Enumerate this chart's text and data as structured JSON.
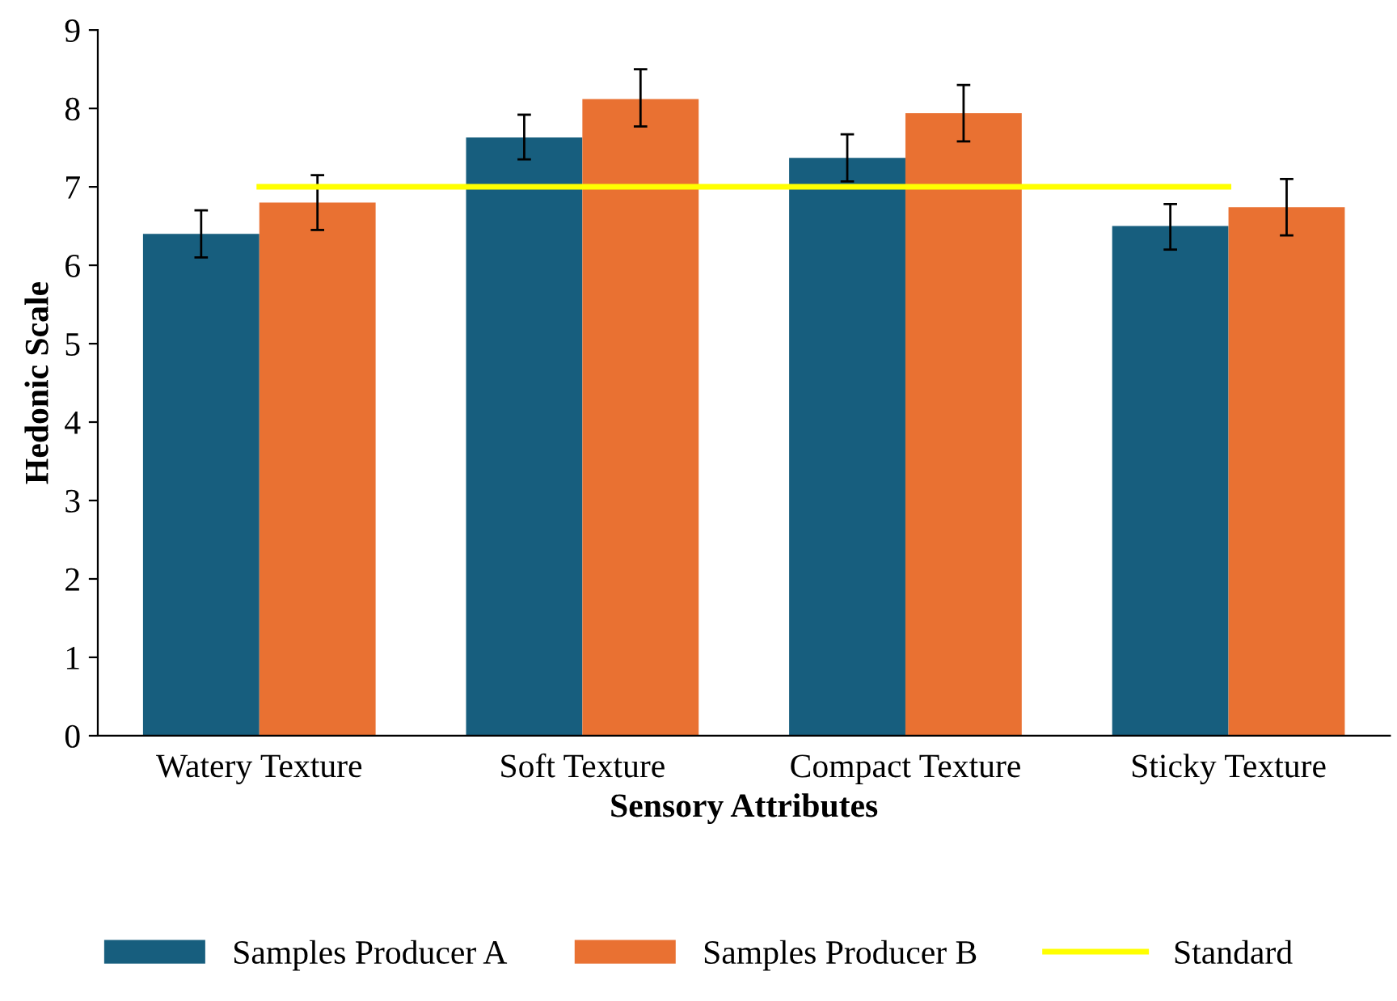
{
  "chart_data": {
    "type": "bar",
    "xlabel": "Sensory Attributes",
    "ylabel": "Hedonic Scale",
    "categories": [
      "Watery Texture",
      "Soft Texture",
      "Compact Texture",
      "Sticky Texture"
    ],
    "series": [
      {
        "name": "Samples Producer A",
        "color": "#175e7e",
        "values": [
          6.4,
          7.63,
          7.37,
          6.5
        ],
        "errors": [
          [
            6.1,
            6.7
          ],
          [
            7.35,
            7.92
          ],
          [
            7.07,
            7.67
          ],
          [
            6.2,
            6.78
          ]
        ]
      },
      {
        "name": "Samples Producer B",
        "color": "#e97132",
        "values": [
          6.8,
          8.12,
          7.94,
          6.74
        ],
        "errors": [
          [
            6.45,
            7.15
          ],
          [
            7.77,
            8.5
          ],
          [
            7.58,
            8.3
          ],
          [
            6.38,
            7.1
          ]
        ]
      },
      {
        "name": "Standard",
        "type": "line",
        "color": "#ffff00",
        "values": [
          7,
          7,
          7,
          7
        ]
      }
    ],
    "ylim": [
      0,
      9
    ],
    "yticks": [
      0,
      1,
      2,
      3,
      4,
      5,
      6,
      7,
      8,
      9
    ],
    "grid": false,
    "legend": "bottom"
  }
}
